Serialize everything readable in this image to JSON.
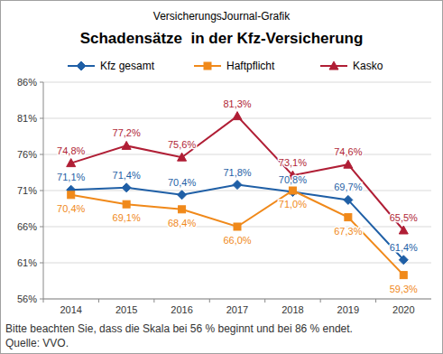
{
  "chart_data": {
    "type": "line",
    "subtitle": "VersicherungsJournal-Grafik",
    "title": "Schadensätze  in der Kfz-Versicherung",
    "categories": [
      "2014",
      "2015",
      "2016",
      "2017",
      "2018",
      "2019",
      "2020"
    ],
    "series": [
      {
        "name": "Kfz gesamt",
        "color": "#1f5fa6",
        "marker": "diamond",
        "values": [
          71.1,
          71.4,
          70.4,
          71.8,
          70.8,
          69.7,
          61.4
        ],
        "value_labels": [
          "71,1%",
          "71,4%",
          "70,4%",
          "71,8%",
          "70,8%",
          "69,7%",
          "61,4%"
        ]
      },
      {
        "name": "Haftpflicht",
        "color": "#f0891a",
        "marker": "square",
        "values": [
          70.4,
          69.1,
          68.4,
          66.0,
          71.0,
          67.3,
          59.3
        ],
        "value_labels": [
          "70,4%",
          "69,1%",
          "68,4%",
          "66,0%",
          "71,0%",
          "67,3%",
          "59,3%"
        ]
      },
      {
        "name": "Kasko",
        "color": "#b01e35",
        "marker": "triangle",
        "values": [
          74.8,
          77.2,
          75.6,
          81.3,
          73.1,
          74.6,
          65.5
        ],
        "value_labels": [
          "74,8%",
          "77,2%",
          "75,6%",
          "81,3%",
          "73,1%",
          "74,6%",
          "65,5%"
        ]
      }
    ],
    "ylim": [
      56,
      86
    ],
    "yticks": [
      {
        "value": 56,
        "label": "56%"
      },
      {
        "value": 61,
        "label": "61%"
      },
      {
        "value": 66,
        "label": "66%"
      },
      {
        "value": 71,
        "label": "71%"
      },
      {
        "value": 76,
        "label": "76%"
      },
      {
        "value": 81,
        "label": "81%"
      },
      {
        "value": 86,
        "label": "86%"
      }
    ],
    "grid": true,
    "legend": "top",
    "data_labels": true,
    "annotations": [
      "Bitte beachten Sie, dass die Skala bei 56 % beginnt und bei 86 % endet.",
      "Quelle: VVO."
    ]
  }
}
